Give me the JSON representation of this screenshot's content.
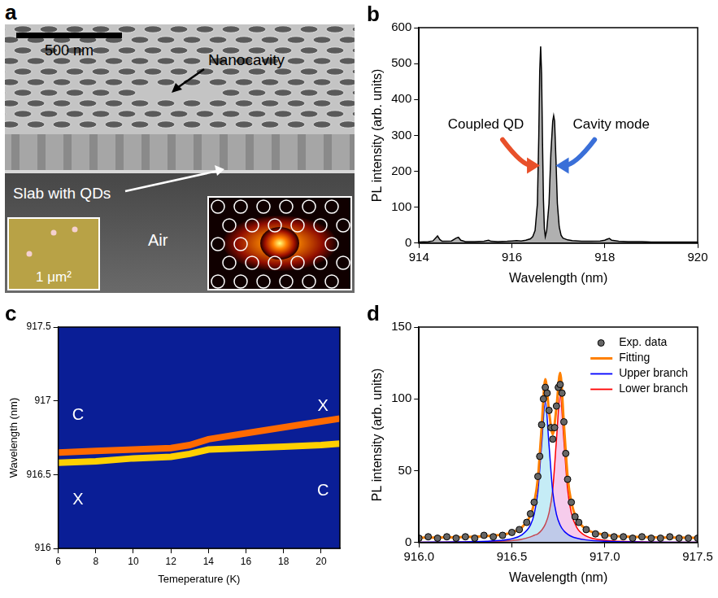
{
  "chart_data": [
    {
      "panel": "a",
      "type": "image",
      "scale_bar": "500 nm",
      "labels": [
        "Nanocavity",
        "Slab with QDs",
        "Air"
      ],
      "inset_label": "1 μm²"
    },
    {
      "panel": "b",
      "type": "area",
      "color": "#000000",
      "x": [
        914.0,
        914.2,
        914.3,
        914.4,
        914.45,
        914.5,
        914.7,
        914.8,
        914.85,
        914.9,
        915.0,
        915.2,
        915.4,
        915.5,
        915.55,
        915.7,
        915.9,
        916.0,
        916.1,
        916.2,
        916.3,
        916.4,
        916.45,
        916.5,
        916.55,
        916.58,
        916.6,
        916.62,
        916.64,
        916.66,
        916.68,
        916.7,
        916.72,
        916.75,
        916.8,
        916.84,
        916.88,
        916.9,
        916.92,
        916.95,
        916.98,
        917.02,
        917.06,
        917.1,
        917.2,
        917.3,
        917.5,
        917.7,
        917.9,
        918.0,
        918.05,
        918.1,
        918.15,
        918.3,
        918.5,
        918.8,
        919.0,
        919.3,
        919.6,
        920.0
      ],
      "values": [
        3,
        4,
        6,
        20,
        10,
        5,
        6,
        14,
        16,
        8,
        4,
        4,
        5,
        8,
        5,
        4,
        5,
        6,
        7,
        6,
        8,
        12,
        18,
        35,
        110,
        300,
        480,
        548,
        470,
        280,
        120,
        40,
        18,
        35,
        110,
        250,
        340,
        355,
        340,
        230,
        110,
        45,
        22,
        14,
        9,
        7,
        5,
        5,
        6,
        8,
        11,
        13,
        8,
        5,
        4,
        4,
        3,
        3,
        3,
        3
      ],
      "xlim": [
        914,
        920
      ],
      "xticks": [
        914,
        916,
        918,
        920
      ],
      "ylim": [
        0,
        600
      ],
      "yticks": [
        0,
        100,
        200,
        300,
        400,
        500,
        600
      ],
      "x_label": "Wavelength (nm)",
      "y_label": "PL intensity (arb. units)",
      "annotations": [
        "Coupled QD",
        "Cavity mode"
      ],
      "grid": false
    },
    {
      "panel": "c",
      "type": "line",
      "x": [
        6,
        8,
        10,
        12,
        13,
        14,
        16,
        18,
        20,
        21
      ],
      "series": [
        {
          "color": "#ff6a00",
          "values": [
            916.65,
            916.66,
            916.67,
            916.68,
            916.7,
            916.74,
            916.78,
            916.82,
            916.86,
            916.88
          ]
        },
        {
          "color": "#ffd000",
          "values": [
            916.58,
            916.59,
            916.61,
            916.62,
            916.64,
            916.67,
            916.68,
            916.69,
            916.7,
            916.71
          ]
        }
      ],
      "xlim": [
        6,
        21
      ],
      "xticks": [
        6,
        8,
        10,
        12,
        14,
        16,
        18,
        20
      ],
      "ylim": [
        916,
        917.5
      ],
      "yticks": [
        916,
        916.5,
        917,
        917.5
      ],
      "x_label": "Temeperature (K)",
      "y_label": "Wavelength (nm)",
      "annotations": [
        "C",
        "X",
        "X",
        "C"
      ],
      "grid": false
    },
    {
      "panel": "d",
      "type": "line",
      "series": [
        {
          "name": "Exp. data",
          "type": "scatter",
          "marker": "circle",
          "color": "#000000",
          "x": [
            916.0,
            916.05,
            916.1,
            916.15,
            916.2,
            916.25,
            916.3,
            916.35,
            916.4,
            916.45,
            916.5,
            916.54,
            916.58,
            916.6,
            916.62,
            916.64,
            916.65,
            916.66,
            916.67,
            916.68,
            916.69,
            916.7,
            916.71,
            916.72,
            916.73,
            916.74,
            916.75,
            916.76,
            916.77,
            916.78,
            916.79,
            916.8,
            916.82,
            916.84,
            916.86,
            916.9,
            916.95,
            917.0,
            917.05,
            917.1,
            917.15,
            917.2,
            917.25,
            917.3,
            917.35,
            917.4,
            917.45,
            917.5
          ],
          "values": [
            3,
            4,
            3,
            4,
            3,
            4,
            3,
            5,
            4,
            5,
            7,
            9,
            14,
            20,
            28,
            46,
            60,
            82,
            100,
            108,
            104,
            92,
            80,
            72,
            80,
            95,
            108,
            110,
            104,
            84,
            62,
            44,
            28,
            18,
            14,
            9,
            6,
            5,
            4,
            4,
            3,
            4,
            3,
            3,
            4,
            3,
            3,
            3
          ]
        },
        {
          "name": "Fitting",
          "type": "line",
          "color": "#ff8000",
          "x": [
            916.0,
            916.2,
            916.4,
            916.5,
            916.55,
            916.6,
            916.62,
            916.64,
            916.66,
            916.68,
            916.7,
            916.72,
            916.74,
            916.76,
            916.78,
            916.8,
            916.82,
            916.85,
            916.9,
            917.0,
            917.2,
            917.5
          ],
          "values": [
            3.36,
            3.7,
            4.8,
            6.9,
            10.1,
            19.0,
            27.6,
            44.4,
            79.3,
            113.7,
            91.4,
            75.4,
            93.9,
            118.1,
            82.4,
            45.9,
            27.9,
            16.3,
            9.3,
            5.45,
            3.83,
            3.3
          ]
        },
        {
          "name": "Upper branch",
          "type": "line",
          "color": "#0000ff",
          "x": [
            916.0,
            916.2,
            916.4,
            916.5,
            916.55,
            916.6,
            916.62,
            916.64,
            916.66,
            916.68,
            916.7,
            916.72,
            916.74,
            916.76,
            916.78,
            916.8,
            916.82,
            916.85,
            916.9,
            917.0,
            917.2,
            917.5
          ],
          "values": [
            0.2,
            0.4,
            1.1,
            2.6,
            5.0,
            12.1,
            19.6,
            35.3,
            67.8,
            98,
            67.8,
            35.3,
            19.6,
            12.1,
            8.1,
            5.8,
            4.3,
            3.0,
            1.8,
            0.85,
            0.33,
            0.13
          ]
        },
        {
          "name": "Lower branch",
          "type": "line",
          "color": "#ff0000",
          "x": [
            916.0,
            916.2,
            916.4,
            916.5,
            916.55,
            916.6,
            916.62,
            916.64,
            916.66,
            916.68,
            916.7,
            916.72,
            916.74,
            916.76,
            916.78,
            916.8,
            916.82,
            916.85,
            916.9,
            917.0,
            917.2,
            917.5
          ],
          "values": [
            0.16,
            0.3,
            0.7,
            1.3,
            2.1,
            3.9,
            5.0,
            6.1,
            8.5,
            12.7,
            20.6,
            37.1,
            71.3,
            103,
            71.3,
            37.1,
            20.6,
            10.3,
            4.5,
            1.6,
            0.5,
            0.17
          ]
        }
      ],
      "xlim": [
        916,
        917.5
      ],
      "xticks": [
        {
          "value": 916,
          "label": "916.0"
        },
        916.5,
        {
          "value": 917,
          "label": "917.0"
        },
        917.5
      ],
      "ylim": [
        0,
        150
      ],
      "yticks": [
        0,
        50,
        100,
        150
      ],
      "x_label": "Wavelength (nm)",
      "y_label": "PL intensity (arb. units)",
      "legend": "upper right",
      "grid": false
    }
  ]
}
